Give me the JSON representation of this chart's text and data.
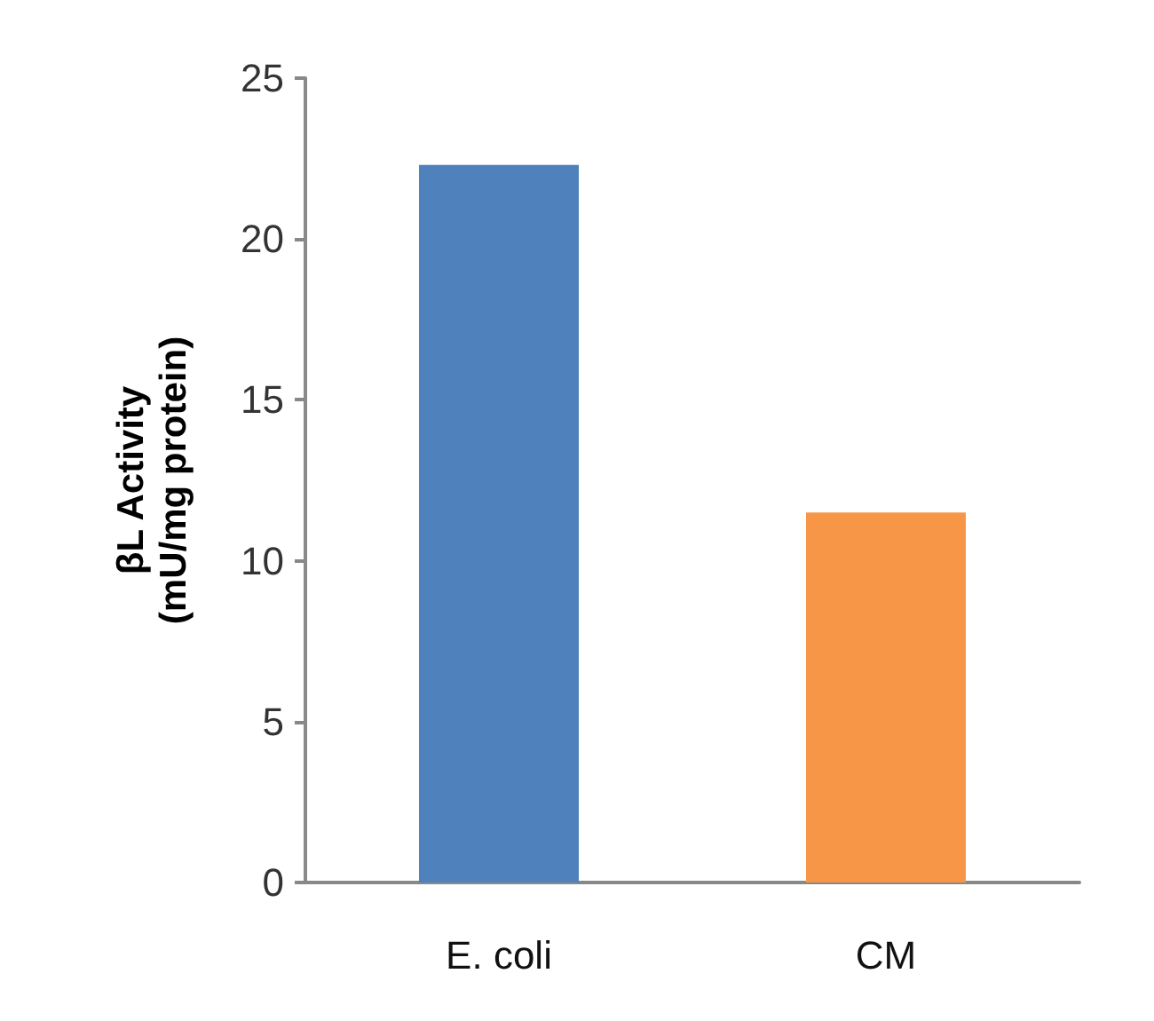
{
  "chart_data": {
    "type": "bar",
    "ylabel": "βL Activity\n(mU/mg protein)",
    "categories": [
      "E. coli",
      "CM"
    ],
    "values": [
      22.3,
      11.5
    ],
    "colors": [
      "#4f81bd",
      "#f79646"
    ],
    "ylim": [
      0,
      25
    ],
    "yticks": [
      0,
      5,
      10,
      15,
      20,
      25
    ]
  }
}
